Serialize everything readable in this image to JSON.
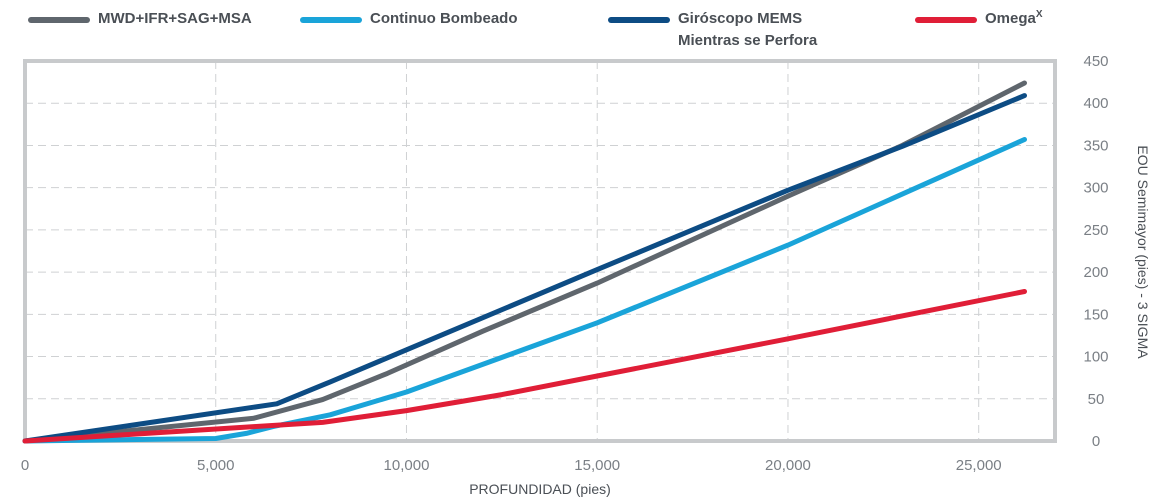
{
  "chart_data": {
    "type": "line",
    "xlabel": "PROFUNDIDAD (pies)",
    "ylabel": "EOU Semimayor (pies) - 3 SIGMA",
    "xlim": [
      0,
      27000
    ],
    "ylim": [
      0,
      450
    ],
    "x_ticks": [
      "0",
      "5,000",
      "10,000",
      "15,000",
      "20,000",
      "25,000"
    ],
    "y_ticks": [
      "0",
      "50",
      "100",
      "150",
      "200",
      "250",
      "300",
      "350",
      "400",
      "450"
    ],
    "grid": true,
    "legend_position": "top",
    "series": [
      {
        "name": "MWD+IFR+SAG+MSA",
        "legend_parts": [
          "MWD+IFR+SAG+MSA"
        ],
        "color": "#5f666d",
        "points": [
          [
            0,
            0
          ],
          [
            6000,
            27
          ],
          [
            7800,
            49
          ],
          [
            9500,
            80
          ],
          [
            12000,
            130
          ],
          [
            15000,
            187
          ],
          [
            20000,
            290
          ],
          [
            23000,
            350
          ],
          [
            26200,
            424
          ]
        ]
      },
      {
        "name": "Continuo Bombeado",
        "legend_parts": [
          "Continuo Bombeado"
        ],
        "color": "#1aa4d9",
        "points": [
          [
            0,
            0
          ],
          [
            5000,
            3
          ],
          [
            5800,
            9
          ],
          [
            6500,
            17
          ],
          [
            8000,
            31
          ],
          [
            10000,
            58
          ],
          [
            15000,
            140
          ],
          [
            20000,
            232
          ],
          [
            26200,
            357
          ]
        ]
      },
      {
        "name": "Giróscopo MEMS Mientras se Perfora",
        "legend_parts": [
          "Giróscopo MEMS",
          "Mientras se Perfora"
        ],
        "color": "#0d4c84",
        "points": [
          [
            0,
            0
          ],
          [
            6600,
            44
          ],
          [
            8000,
            70
          ],
          [
            10000,
            108
          ],
          [
            15000,
            203
          ],
          [
            20000,
            297
          ],
          [
            23000,
            349
          ],
          [
            26200,
            409
          ]
        ]
      },
      {
        "name": "Omega",
        "legend_parts": [
          "Omega"
        ],
        "legend_sup": "X",
        "color": "#e01e37",
        "points": [
          [
            0,
            0
          ],
          [
            3500,
            10
          ],
          [
            6000,
            17
          ],
          [
            7800,
            22
          ],
          [
            10000,
            36
          ],
          [
            12500,
            55
          ],
          [
            15000,
            77
          ],
          [
            20000,
            121
          ],
          [
            26200,
            177
          ]
        ]
      }
    ]
  }
}
